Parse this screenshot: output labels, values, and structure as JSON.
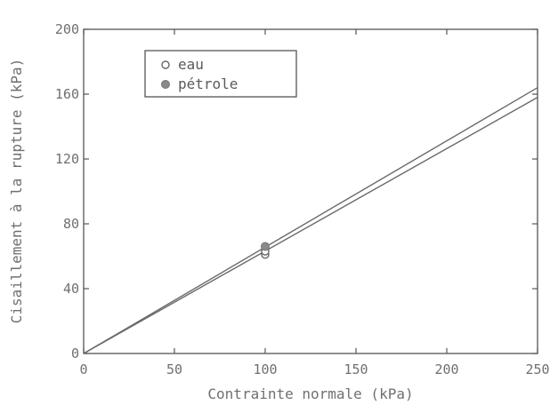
{
  "chart_data": {
    "type": "line",
    "title": "",
    "xlabel": "Contrainte normale (kPa)",
    "ylabel": "Cisaillement à la rupture (kPa)",
    "xlim": [
      0,
      250
    ],
    "ylim": [
      0,
      200
    ],
    "xticks": [
      0,
      50,
      100,
      150,
      200,
      250
    ],
    "yticks": [
      0,
      40,
      80,
      120,
      160,
      200
    ],
    "grid": false,
    "legend_position": "top-left",
    "series": [
      {
        "name": "eau",
        "marker": "open-circle",
        "points": [
          {
            "x": 100,
            "y": 61
          },
          {
            "x": 100,
            "y": 63
          }
        ],
        "fit_line": [
          {
            "x": 0,
            "y": 0
          },
          {
            "x": 250,
            "y": 158
          }
        ]
      },
      {
        "name": "pétrole",
        "marker": "filled-circle",
        "points": [
          {
            "x": 100,
            "y": 66
          }
        ],
        "fit_line": [
          {
            "x": 0,
            "y": 0
          },
          {
            "x": 250,
            "y": 164
          }
        ]
      }
    ],
    "colors": {
      "line": "#6a6a6a",
      "axis": "#555555",
      "text": "#6f6f6f",
      "marker_fill": "#8a8a8a"
    }
  }
}
